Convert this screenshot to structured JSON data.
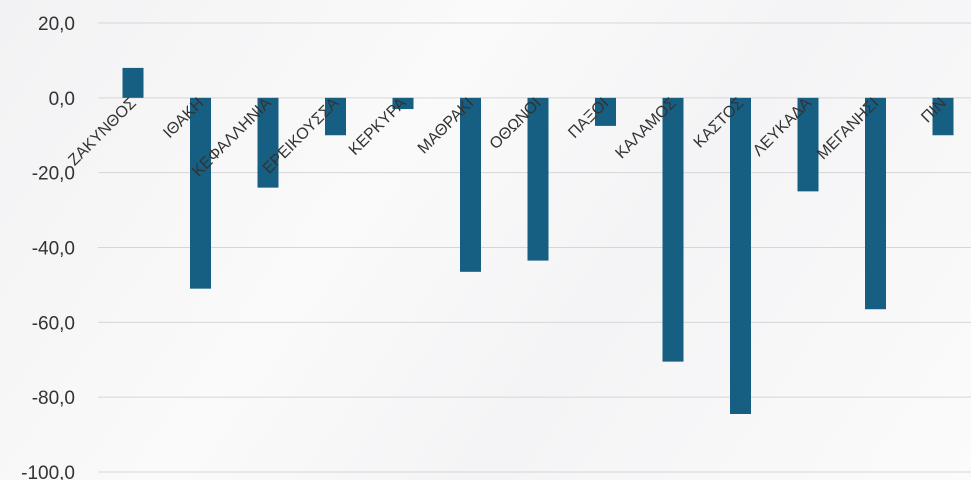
{
  "chart_data": {
    "type": "bar",
    "title": "",
    "xlabel": "",
    "ylabel": "",
    "categories": [
      "ΖΑΚΥΝΘΟΣ",
      "ΙΘΑΚΗ",
      "ΚΕΦΑΛΛΗΝΙΑ",
      "ΕΡΕΙΚΟΥΣΣΑ",
      "ΚΕΡΚΥΡΑ",
      "ΜΑΘΡΑΚΙ",
      "ΟΘΩΝΟΙ",
      "ΠΑΞΟΙ",
      "ΚΑΛΑΜΟΣ",
      "ΚΑΣΤΟΣ",
      "ΛΕΥΚΑΔΑ",
      "ΜΕΓΑΝΗΣΙ",
      "ΠΙΝ"
    ],
    "values": [
      8.0,
      -51.0,
      -24.0,
      -10.0,
      -3.0,
      -46.5,
      -43.5,
      -7.5,
      -70.5,
      -84.5,
      -25.0,
      -56.5,
      -10.0
    ],
    "ylim": [
      -100,
      20
    ],
    "yticks": [
      "20,0",
      "0,0",
      "-20,0",
      "-40,0",
      "-60,0",
      "-80,0",
      "-100,0"
    ],
    "bar_color": "#165f83",
    "grid": true,
    "legend": "none"
  }
}
